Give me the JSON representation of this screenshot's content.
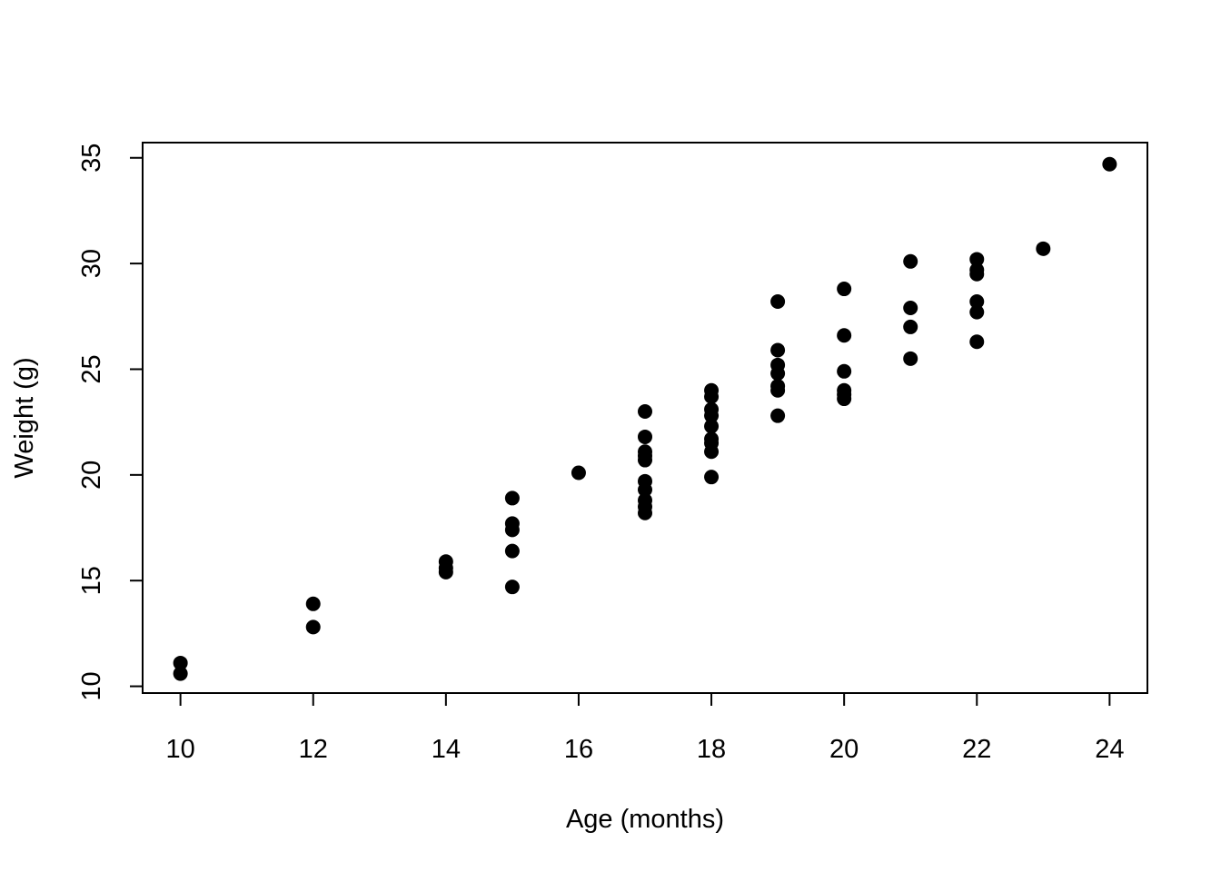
{
  "chart_data": {
    "type": "scatter",
    "title": "",
    "xlabel": "Age (months)",
    "ylabel": "Weight (g)",
    "xlim": [
      9.43,
      24.57
    ],
    "ylim": [
      9.68,
      35.72
    ],
    "xticks": [
      10,
      12,
      14,
      16,
      18,
      20,
      22,
      24
    ],
    "yticks": [
      10,
      15,
      20,
      25,
      30,
      35
    ],
    "grid": false,
    "point_color": "#000000",
    "points": [
      {
        "x": 10,
        "y": 11.1
      },
      {
        "x": 10,
        "y": 10.6
      },
      {
        "x": 12,
        "y": 13.9
      },
      {
        "x": 12,
        "y": 12.8
      },
      {
        "x": 14,
        "y": 15.9
      },
      {
        "x": 14,
        "y": 15.6
      },
      {
        "x": 14,
        "y": 15.4
      },
      {
        "x": 15,
        "y": 18.9
      },
      {
        "x": 15,
        "y": 17.7
      },
      {
        "x": 15,
        "y": 17.4
      },
      {
        "x": 15,
        "y": 16.4
      },
      {
        "x": 15,
        "y": 14.7
      },
      {
        "x": 16,
        "y": 20.1
      },
      {
        "x": 17,
        "y": 23.0
      },
      {
        "x": 17,
        "y": 21.8
      },
      {
        "x": 17,
        "y": 21.1
      },
      {
        "x": 17,
        "y": 20.9
      },
      {
        "x": 17,
        "y": 20.7
      },
      {
        "x": 17,
        "y": 19.7
      },
      {
        "x": 17,
        "y": 19.3
      },
      {
        "x": 17,
        "y": 18.8
      },
      {
        "x": 17,
        "y": 18.5
      },
      {
        "x": 17,
        "y": 18.2
      },
      {
        "x": 18,
        "y": 24.0
      },
      {
        "x": 18,
        "y": 23.7
      },
      {
        "x": 18,
        "y": 23.1
      },
      {
        "x": 18,
        "y": 22.8
      },
      {
        "x": 18,
        "y": 22.3
      },
      {
        "x": 18,
        "y": 21.7
      },
      {
        "x": 18,
        "y": 21.5
      },
      {
        "x": 18,
        "y": 21.1
      },
      {
        "x": 18,
        "y": 19.9
      },
      {
        "x": 19,
        "y": 28.2
      },
      {
        "x": 19,
        "y": 25.9
      },
      {
        "x": 19,
        "y": 25.2
      },
      {
        "x": 19,
        "y": 24.8
      },
      {
        "x": 19,
        "y": 24.2
      },
      {
        "x": 19,
        "y": 24.0
      },
      {
        "x": 19,
        "y": 22.8
      },
      {
        "x": 20,
        "y": 28.8
      },
      {
        "x": 20,
        "y": 26.6
      },
      {
        "x": 20,
        "y": 24.9
      },
      {
        "x": 20,
        "y": 24.0
      },
      {
        "x": 20,
        "y": 23.8
      },
      {
        "x": 20,
        "y": 23.6
      },
      {
        "x": 21,
        "y": 30.1
      },
      {
        "x": 21,
        "y": 27.9
      },
      {
        "x": 21,
        "y": 27.0
      },
      {
        "x": 21,
        "y": 25.5
      },
      {
        "x": 22,
        "y": 30.2
      },
      {
        "x": 22,
        "y": 29.7
      },
      {
        "x": 22,
        "y": 29.5
      },
      {
        "x": 22,
        "y": 28.2
      },
      {
        "x": 22,
        "y": 27.7
      },
      {
        "x": 22,
        "y": 26.3
      },
      {
        "x": 23,
        "y": 30.7
      },
      {
        "x": 24,
        "y": 34.7
      }
    ]
  }
}
